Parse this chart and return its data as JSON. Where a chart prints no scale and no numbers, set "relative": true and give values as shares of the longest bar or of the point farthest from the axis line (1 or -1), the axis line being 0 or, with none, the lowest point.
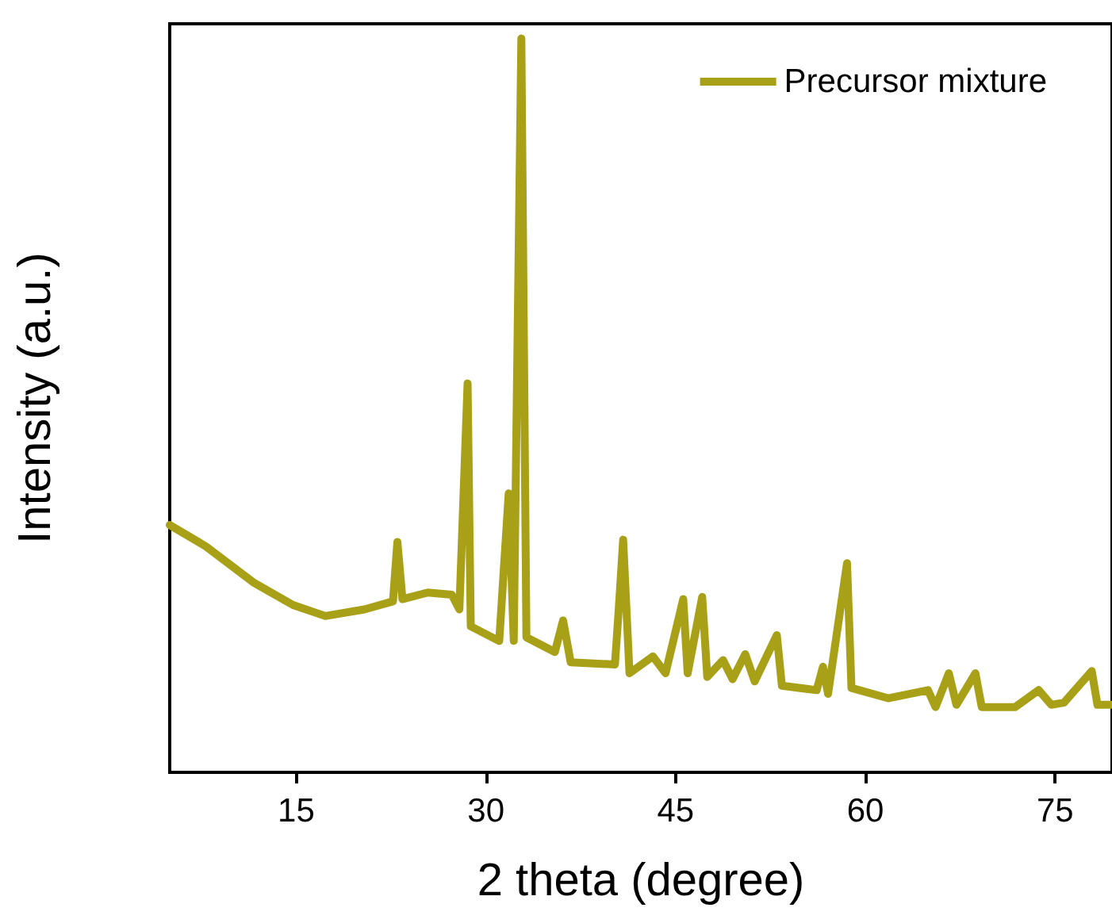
{
  "chart_data": {
    "type": "line",
    "relative": true,
    "xlabel": "2 theta (degree)",
    "ylabel": "Intensity (a.u.)",
    "xlim": [
      5,
      79.5
    ],
    "xticks": [
      15,
      30,
      45,
      60,
      75
    ],
    "grid": false,
    "legend": "top right",
    "marker": "none",
    "line_style": "solid",
    "series": [
      {
        "name": "Precursor mixture",
        "color": "#a8a117",
        "x": [
          5.0,
          7.85,
          11.6,
          14.75,
          17.3,
          20.4,
          22.65,
          23.0,
          23.4,
          25.4,
          27.3,
          27.9,
          28.55,
          28.8,
          31.05,
          31.8,
          32.2,
          32.8,
          33.2,
          35.45,
          36.1,
          36.7,
          40.2,
          40.5,
          40.85,
          41.35,
          43.2,
          44.2,
          45.6,
          45.95,
          47.1,
          47.5,
          48.75,
          49.5,
          50.5,
          51.25,
          53.0,
          53.4,
          56.15,
          56.65,
          57.05,
          58.55,
          58.9,
          61.8,
          64.95,
          65.55,
          66.6,
          67.2,
          68.7,
          69.2,
          71.85,
          73.7,
          74.7,
          75.7,
          77.9,
          78.35,
          79.5
        ],
        "values": [
          0.337,
          0.308,
          0.259,
          0.228,
          0.213,
          0.222,
          0.233,
          0.314,
          0.236,
          0.245,
          0.242,
          0.222,
          0.53,
          0.199,
          0.179,
          0.38,
          0.179,
          1.0,
          0.184,
          0.164,
          0.207,
          0.15,
          0.147,
          0.222,
          0.317,
          0.135,
          0.158,
          0.135,
          0.236,
          0.135,
          0.239,
          0.13,
          0.153,
          0.127,
          0.161,
          0.124,
          0.187,
          0.118,
          0.112,
          0.144,
          0.107,
          0.285,
          0.115,
          0.101,
          0.112,
          0.089,
          0.135,
          0.092,
          0.135,
          0.089,
          0.089,
          0.112,
          0.092,
          0.095,
          0.138,
          0.092,
          0.092
        ]
      }
    ]
  }
}
